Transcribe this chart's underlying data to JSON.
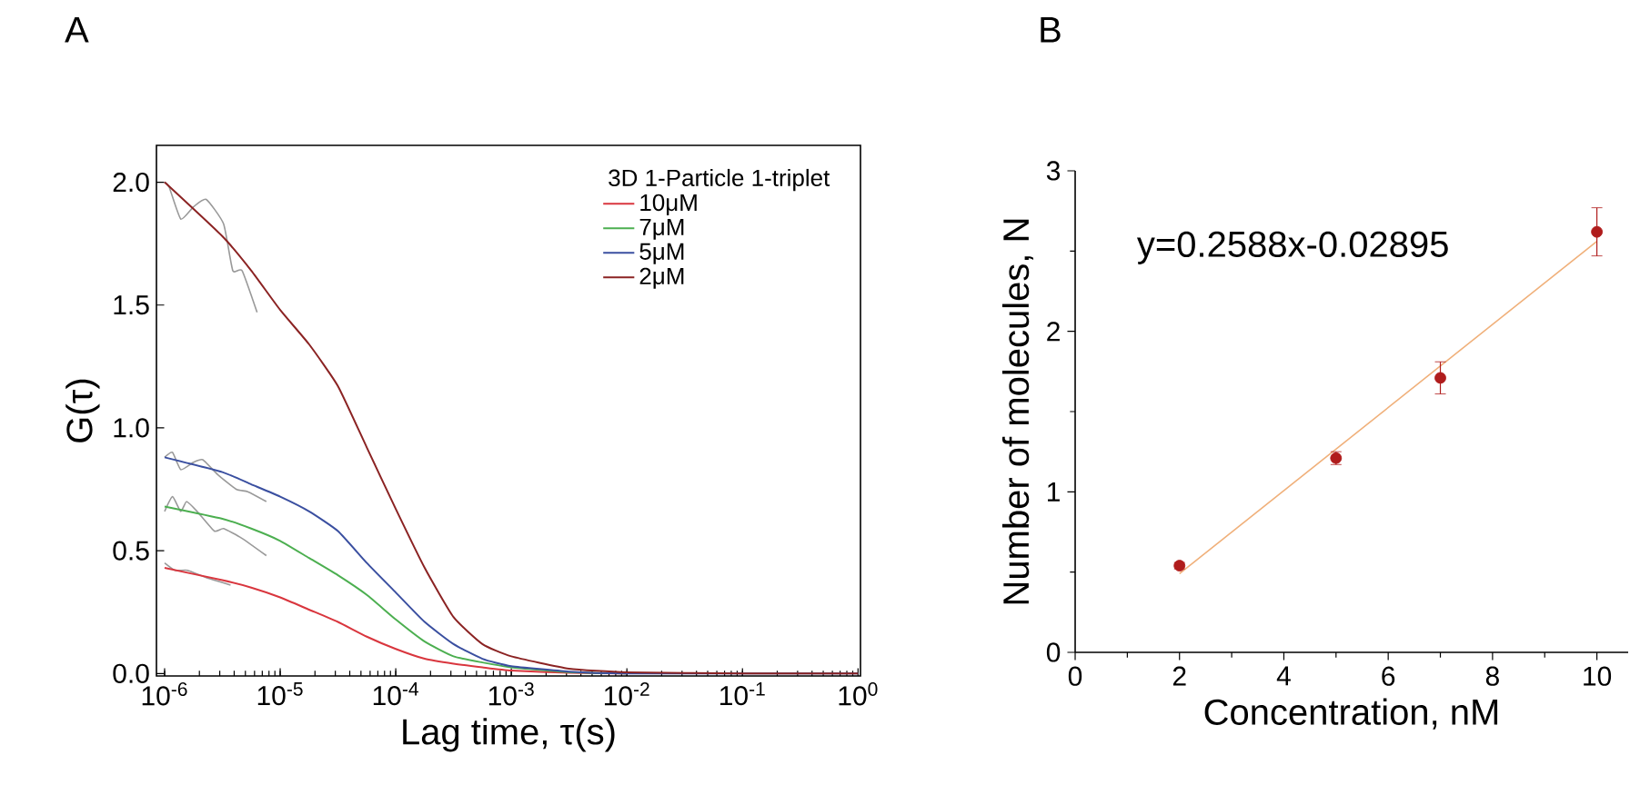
{
  "chart_data": [
    {
      "type": "line",
      "title": "A",
      "xlabel": "Lag time, τ(s)",
      "ylabel": "G(τ)",
      "legend_title": "3D 1-Particle 1-triplet",
      "legend": "top right",
      "log": "x",
      "xlim": [
        8.5e-07,
        1.05
      ],
      "ylim": [
        -0.01,
        2.15
      ],
      "xticks": [
        {
          "value": 1e-06,
          "label": "10$^{-6}$"
        },
        {
          "value": 1e-05,
          "label": "10$^{-5}$"
        },
        {
          "value": 0.0001,
          "label": "10$^{-4}$"
        },
        {
          "value": 0.001,
          "label": "10$^{-3}$"
        },
        {
          "value": 0.01,
          "label": "10$^{-2}$"
        },
        {
          "value": 0.1,
          "label": "10$^{-1}$"
        },
        {
          "value": 1,
          "label": "10$^{0}$"
        }
      ],
      "yticks": [
        {
          "value": 0,
          "label": "0.0"
        },
        {
          "value": 0.5,
          "label": "0.5"
        },
        {
          "value": 1,
          "label": "1.0"
        },
        {
          "value": 1.5,
          "label": "1.5"
        },
        {
          "value": 2,
          "label": "2.0"
        }
      ],
      "x": [
        1e-06,
        3.16e-06,
        5.62e-06,
        1e-05,
        1.78e-05,
        3.16e-05,
        5.62e-05,
        0.0001,
        0.000178,
        0.000316,
        0.000562,
        0.001,
        0.00316,
        0.01,
        0.1,
        1
      ],
      "series": [
        {
          "color": "#999999",
          "x": [
            1e-06,
            1.096e-06,
            1.38e-06,
            1.78e-06,
            2.29e-06,
            3.24e-06,
            3.89e-06,
            4.68e-06,
            6.31e-06
          ],
          "values": [
            2.0,
            1.98,
            1.85,
            1.9,
            1.93,
            1.83,
            1.64,
            1.64,
            1.47
          ]
        },
        {
          "color": "#999999",
          "x": [
            1e-06,
            1.17e-06,
            1.38e-06,
            1.78e-06,
            2.14e-06,
            2.88e-06,
            4.17e-06,
            5.25e-06,
            7.59e-06
          ],
          "values": [
            0.88,
            0.9,
            0.83,
            0.86,
            0.87,
            0.81,
            0.75,
            0.74,
            0.7
          ]
        },
        {
          "color": "#999999",
          "x": [
            1e-06,
            1.17e-06,
            1.38e-06,
            1.55e-06,
            1.91e-06,
            2.69e-06,
            3.24e-06,
            4.68e-06,
            7.59e-06
          ],
          "values": [
            0.66,
            0.72,
            0.66,
            0.7,
            0.66,
            0.58,
            0.59,
            0.55,
            0.48
          ]
        },
        {
          "color": "#999999",
          "x": [
            1e-06,
            1.23e-06,
            1.58e-06,
            2.29e-06,
            3.72e-06
          ],
          "values": [
            0.45,
            0.42,
            0.42,
            0.39,
            0.36
          ]
        },
        {
          "name": "10μM",
          "color": "#d9363e",
          "values": [
            0.43,
            0.38,
            0.35,
            0.31,
            0.26,
            0.21,
            0.15,
            0.1,
            0.06,
            0.04,
            0.025,
            0.012,
            0.003,
            0,
            null,
            null
          ]
        },
        {
          "name": "7μM",
          "color": "#4caf50",
          "values": [
            0.68,
            0.63,
            0.59,
            0.54,
            0.47,
            0.4,
            0.32,
            0.22,
            0.13,
            0.07,
            0.045,
            0.025,
            0.006,
            0,
            null,
            null
          ]
        },
        {
          "name": "5μM",
          "color": "#3a4fa0",
          "values": [
            0.88,
            0.82,
            0.77,
            0.72,
            0.66,
            0.58,
            0.45,
            0.33,
            0.21,
            0.12,
            0.06,
            0.03,
            0.008,
            0,
            0,
            0
          ]
        },
        {
          "name": "2μM",
          "color": "#8b2323",
          "values": [
            2.0,
            1.78,
            1.64,
            1.48,
            1.34,
            1.17,
            0.92,
            0.67,
            0.43,
            0.23,
            0.12,
            0.07,
            0.02,
            0.005,
            0,
            0
          ]
        }
      ]
    },
    {
      "type": "scatter",
      "title": "B",
      "xlabel": "Concentration, nM",
      "ylabel": "Number of molecules, N",
      "annotations": [
        "y=0.2588x-0.02895"
      ],
      "xlim": [
        0,
        10.6
      ],
      "ylim": [
        0,
        3
      ],
      "xticks": [
        0,
        2,
        4,
        6,
        8,
        10
      ],
      "yticks": [
        0,
        1,
        2,
        3
      ],
      "series": [
        {
          "type": "line",
          "color": "#f0b07a",
          "x": [
            2,
            10
          ],
          "values": [
            0.49,
            2.56
          ]
        },
        {
          "color": "#b01c1c",
          "marker": "circle",
          "x": [
            2,
            5,
            7,
            10
          ],
          "values": [
            0.54,
            1.21,
            1.71,
            2.62
          ],
          "errors": [
            0.02,
            0.04,
            0.1,
            0.15
          ]
        }
      ]
    }
  ]
}
